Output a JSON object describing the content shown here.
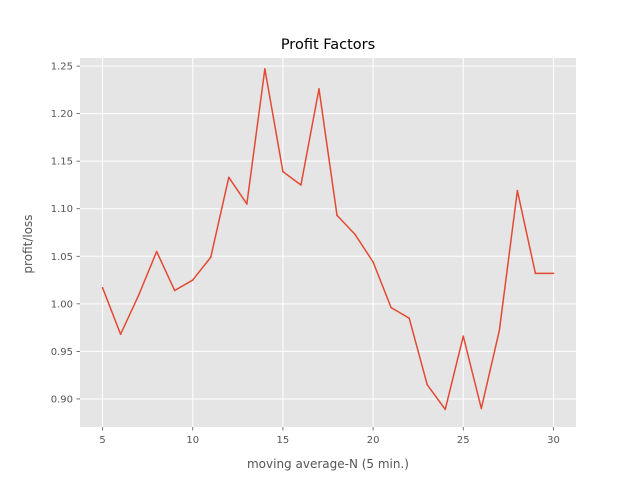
{
  "chart_data": {
    "type": "line",
    "title": "Profit Factors",
    "xlabel": "moving average-N  (5 min.)",
    "ylabel": "profit/loss",
    "xlim": [
      3.75,
      31.25
    ],
    "ylim": [
      0.8705,
      1.2585
    ],
    "x_ticks": [
      5,
      10,
      15,
      20,
      25,
      30
    ],
    "y_ticks": [
      0.9,
      0.95,
      1.0,
      1.05,
      1.1,
      1.15,
      1.2,
      1.25
    ],
    "grid": true,
    "series": [
      {
        "color": "#E24A33",
        "x": [
          5,
          6,
          7,
          8,
          9,
          10,
          11,
          12,
          13,
          14,
          15,
          16,
          17,
          18,
          19,
          20,
          21,
          22,
          23,
          24,
          25,
          26,
          27,
          28,
          29,
          30
        ],
        "y": [
          1.017,
          0.968,
          1.009,
          1.055,
          1.014,
          1.025,
          1.049,
          1.133,
          1.105,
          1.247,
          1.139,
          1.125,
          1.226,
          1.093,
          1.073,
          1.044,
          0.996,
          0.985,
          0.915,
          0.889,
          0.966,
          0.89,
          0.972,
          1.119,
          1.032,
          1.032
        ]
      }
    ]
  },
  "colors": {
    "plot_background": "#E5E5E5",
    "line": "#E24A33"
  }
}
